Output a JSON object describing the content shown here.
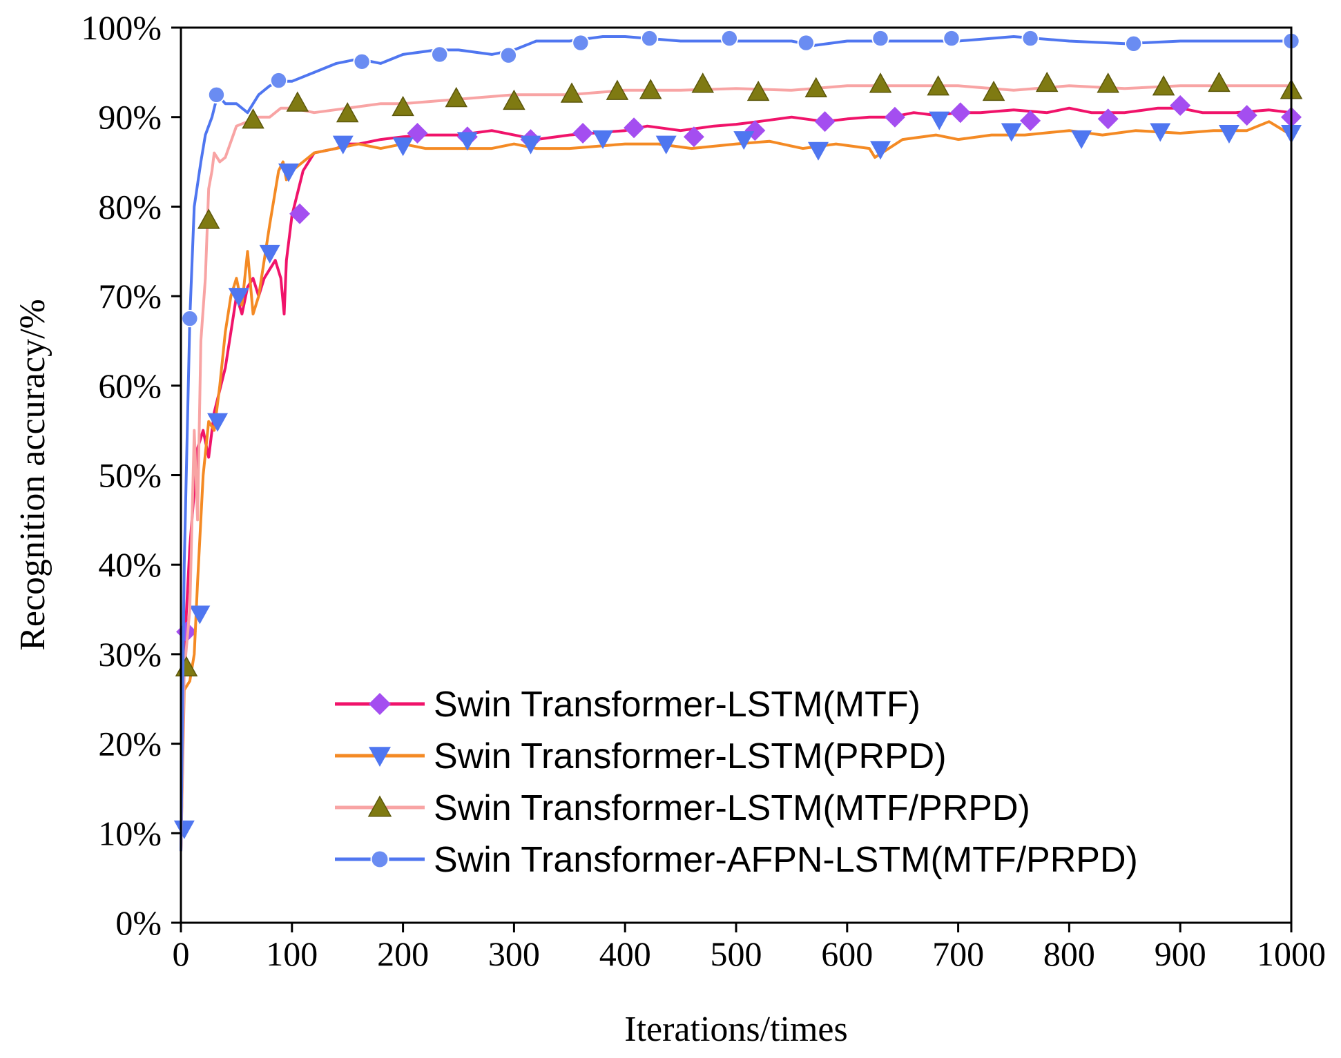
{
  "chart_data": {
    "type": "line",
    "title": "",
    "xlabel": "Iterations/times",
    "ylabel": "Recognition accuracy/%",
    "xlim": [
      0,
      1000
    ],
    "ylim": [
      0,
      100
    ],
    "x_ticks": [
      0,
      100,
      200,
      300,
      400,
      500,
      600,
      700,
      800,
      900,
      1000
    ],
    "x_tick_labels": [
      "0",
      "100",
      "200",
      "300",
      "400",
      "500",
      "600",
      "700",
      "800",
      "900",
      "1000"
    ],
    "y_ticks": [
      0,
      10,
      20,
      30,
      40,
      50,
      60,
      70,
      80,
      90,
      100
    ],
    "y_tick_labels": [
      "0%",
      "10%",
      "20%",
      "30%",
      "40%",
      "50%",
      "60%",
      "70%",
      "80%",
      "90%",
      "100%"
    ],
    "legend_position": "bottom-center",
    "series": [
      {
        "name": "Swin Transformer-LSTM(MTF)",
        "color": "#f0136a",
        "marker": "diamond",
        "marker_color": "#a44ef0",
        "x": [
          0,
          3,
          8,
          15,
          20,
          25,
          30,
          40,
          45,
          50,
          55,
          60,
          65,
          70,
          75,
          80,
          85,
          90,
          93,
          95,
          100,
          110,
          120,
          140,
          150,
          160,
          180,
          200,
          220,
          250,
          280,
          300,
          320,
          350,
          380,
          400,
          420,
          450,
          480,
          500,
          520,
          550,
          580,
          600,
          620,
          640,
          660,
          680,
          700,
          720,
          750,
          780,
          800,
          820,
          850,
          880,
          900,
          920,
          950,
          980,
          1000
        ],
        "y": [
          8,
          30,
          42,
          53,
          55,
          52,
          57,
          62,
          66,
          70,
          68,
          71,
          72,
          70,
          72,
          73,
          74,
          72,
          68,
          74,
          79,
          84,
          86,
          86.5,
          87,
          87,
          87.5,
          87.8,
          88,
          88,
          88.5,
          88,
          87.5,
          88,
          88.3,
          88.5,
          89,
          88.5,
          89,
          89.2,
          89.5,
          90,
          89.5,
          89.8,
          90,
          90,
          90.5,
          90.2,
          90.5,
          90.5,
          90.8,
          90.5,
          91,
          90.5,
          90.5,
          91,
          91,
          90.5,
          90.5,
          90.8,
          90.5
        ],
        "marker_x": [
          5,
          107,
          213,
          258,
          315,
          362,
          408,
          462,
          517,
          580,
          643,
          702,
          765,
          835,
          900,
          960,
          1000
        ],
        "marker_y": [
          32.5,
          79.2,
          88.2,
          87.8,
          87.5,
          88.2,
          88.8,
          87.8,
          88.5,
          89.5,
          90,
          90.5,
          89.6,
          89.8,
          91.3,
          90.2,
          90
        ]
      },
      {
        "name": "Swin Transformer-LSTM(PRPD)",
        "color": "#f48a24",
        "marker": "triangle-down",
        "marker_color": "#4f76f0",
        "x": [
          0,
          3,
          8,
          12,
          15,
          20,
          25,
          30,
          35,
          40,
          45,
          50,
          55,
          60,
          65,
          70,
          80,
          88,
          92,
          95,
          100,
          110,
          120,
          140,
          160,
          180,
          200,
          220,
          250,
          280,
          300,
          320,
          350,
          380,
          400,
          430,
          460,
          500,
          530,
          560,
          590,
          620,
          625,
          650,
          680,
          700,
          730,
          760,
          800,
          830,
          860,
          900,
          930,
          960,
          980,
          1000
        ],
        "y": [
          8,
          26,
          27,
          30,
          38,
          50,
          56,
          55,
          60,
          66,
          70,
          72,
          69,
          75,
          68,
          70,
          78,
          84,
          85,
          83,
          84,
          85,
          86,
          86.5,
          87,
          86.5,
          87,
          86.5,
          86.5,
          86.5,
          87,
          86.5,
          86.5,
          86.8,
          87,
          87,
          86.5,
          87,
          87.3,
          86.5,
          87,
          86.5,
          85.5,
          87.5,
          88,
          87.5,
          88,
          88,
          88.5,
          88,
          88.5,
          88.2,
          88.5,
          88.5,
          89.5,
          88
        ],
        "marker_x": [
          3,
          17,
          33,
          52,
          80,
          97,
          146,
          200,
          258,
          315,
          380,
          437,
          507,
          574,
          630,
          683,
          748,
          811,
          882,
          944,
          1000
        ],
        "marker_y": [
          10.5,
          34.5,
          56,
          70,
          74.8,
          83.9,
          87,
          86.8,
          87.4,
          87,
          87.6,
          87,
          87.5,
          86.3,
          86.4,
          89.7,
          88.4,
          87.6,
          88.4,
          88.2,
          88.2
        ]
      },
      {
        "name": "Swin Transformer-LSTM(MTF/PRPD)",
        "color": "#f8a4a4",
        "marker": "triangle-up",
        "marker_color": "#7f7a12",
        "x": [
          0,
          3,
          8,
          12,
          15,
          18,
          22,
          25,
          28,
          30,
          35,
          40,
          50,
          60,
          70,
          80,
          90,
          100,
          120,
          150,
          180,
          200,
          250,
          300,
          350,
          400,
          450,
          500,
          550,
          600,
          650,
          700,
          750,
          800,
          850,
          900,
          950,
          1000
        ],
        "y": [
          8,
          28,
          35,
          55,
          45,
          65,
          72,
          82,
          84,
          86,
          85,
          85.5,
          89,
          89.5,
          90,
          90,
          91,
          91,
          90.5,
          91,
          91.5,
          91.5,
          92,
          92.5,
          92.5,
          93,
          93,
          93.2,
          93,
          93.5,
          93.5,
          93.5,
          93,
          93.5,
          93.2,
          93.5,
          93.5,
          93.5
        ],
        "marker_x": [
          5,
          25,
          65,
          105,
          150,
          200,
          248,
          300,
          352,
          393,
          423,
          470,
          520,
          572,
          630,
          682,
          732,
          780,
          835,
          885,
          935,
          1000
        ],
        "marker_y": [
          28.5,
          78.5,
          89.7,
          91.6,
          90.4,
          91.1,
          92.1,
          91.8,
          92.6,
          92.9,
          93,
          93.7,
          92.8,
          93.2,
          93.7,
          93.4,
          92.8,
          93.8,
          93.7,
          93.4,
          93.8,
          93
        ]
      },
      {
        "name": "Swin Transformer-AFPN-LSTM(MTF/PRPD)",
        "color": "#4f76f0",
        "marker": "circle",
        "marker_color": "#6a8cf2",
        "x": [
          0,
          3,
          8,
          12,
          18,
          22,
          28,
          33,
          40,
          50,
          60,
          70,
          80,
          90,
          100,
          120,
          140,
          160,
          180,
          200,
          230,
          250,
          280,
          300,
          320,
          350,
          380,
          400,
          450,
          500,
          550,
          570,
          600,
          650,
          700,
          750,
          800,
          850,
          900,
          950,
          1000
        ],
        "y": [
          8,
          40,
          67.5,
          80,
          85,
          88,
          90,
          92.5,
          91.5,
          91.5,
          90.5,
          92.5,
          93.5,
          94,
          94,
          95,
          96,
          96.5,
          96,
          97,
          97.5,
          97.5,
          97,
          97.5,
          98.5,
          98.5,
          99,
          99,
          98.5,
          98.5,
          98.5,
          98,
          98.5,
          98.5,
          98.5,
          99,
          98.5,
          98.2,
          98.5,
          98.5,
          98.5
        ],
        "marker_x": [
          8,
          32,
          88,
          163,
          233,
          295,
          360,
          422,
          494,
          563,
          630,
          694,
          765,
          858,
          1000
        ],
        "marker_y": [
          67.5,
          92.5,
          94.1,
          96.2,
          97,
          96.9,
          98.3,
          98.8,
          98.8,
          98.3,
          98.8,
          98.8,
          98.8,
          98.2,
          98.5
        ]
      }
    ]
  }
}
